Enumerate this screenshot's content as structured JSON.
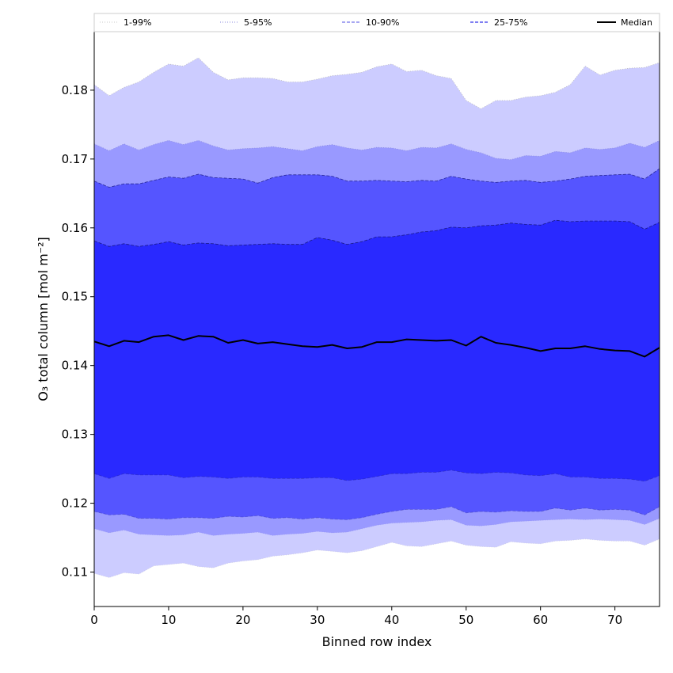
{
  "chart_data": {
    "type": "area",
    "title": "",
    "xlabel": "Binned row index",
    "ylabel": "O₃ total column [mol m⁻²]",
    "xlim": [
      0,
      76
    ],
    "ylim": [
      0.105,
      0.1885
    ],
    "xticks": [
      0,
      10,
      20,
      30,
      40,
      50,
      60,
      70
    ],
    "yticks": [
      0.11,
      0.12,
      0.13,
      0.14,
      0.15,
      0.16,
      0.17,
      0.18
    ],
    "x": [
      0,
      2,
      4,
      6,
      8,
      10,
      12,
      14,
      16,
      18,
      20,
      22,
      24,
      26,
      28,
      30,
      32,
      34,
      36,
      38,
      40,
      42,
      44,
      46,
      48,
      50,
      52,
      54,
      56,
      58,
      60,
      62,
      64,
      66,
      68,
      70,
      72,
      74,
      76
    ],
    "bands": [
      {
        "name": "1-99%",
        "color": "#ccccff",
        "line": "#bbbbbb",
        "upper": [
          0.1808,
          0.1792,
          0.1804,
          0.1812,
          0.1826,
          0.1838,
          0.1835,
          0.1847,
          0.1826,
          0.1815,
          0.1818,
          0.1818,
          0.1817,
          0.1812,
          0.1812,
          0.1816,
          0.1821,
          0.1823,
          0.1826,
          0.1834,
          0.1838,
          0.1827,
          0.1829,
          0.1821,
          0.1817,
          0.1785,
          0.1773,
          0.1785,
          0.1785,
          0.179,
          0.1792,
          0.1797,
          0.1808,
          0.1835,
          0.1822,
          0.1829,
          0.1832,
          0.1833,
          0.184
        ],
        "lower": [
          0.1098,
          0.1092,
          0.1099,
          0.1097,
          0.1109,
          0.1111,
          0.1113,
          0.1108,
          0.1106,
          0.1113,
          0.1116,
          0.1118,
          0.1123,
          0.1125,
          0.1128,
          0.1132,
          0.113,
          0.1128,
          0.1131,
          0.1137,
          0.1143,
          0.1138,
          0.1137,
          0.1141,
          0.1145,
          0.1139,
          0.1137,
          0.1136,
          0.1144,
          0.1142,
          0.1141,
          0.1145,
          0.1146,
          0.1148,
          0.1146,
          0.1145,
          0.1145,
          0.1139,
          0.1148
        ]
      },
      {
        "name": "5-95%",
        "color": "#9999ff",
        "line": "#8a8add",
        "upper": [
          0.1722,
          0.1712,
          0.1722,
          0.1713,
          0.1721,
          0.1727,
          0.1721,
          0.1727,
          0.1719,
          0.1713,
          0.1715,
          0.1716,
          0.1718,
          0.1715,
          0.1712,
          0.1718,
          0.1721,
          0.1716,
          0.1713,
          0.1717,
          0.1716,
          0.1712,
          0.1717,
          0.1716,
          0.1722,
          0.1714,
          0.1709,
          0.1701,
          0.1699,
          0.1705,
          0.1704,
          0.1711,
          0.1709,
          0.1716,
          0.1714,
          0.1716,
          0.1723,
          0.1717,
          0.1727
        ],
        "lower": [
          0.1163,
          0.1157,
          0.1161,
          0.1155,
          0.1154,
          0.1153,
          0.1154,
          0.1158,
          0.1153,
          0.1155,
          0.1156,
          0.1158,
          0.1153,
          0.1155,
          0.1156,
          0.1159,
          0.1157,
          0.1158,
          0.1163,
          0.1168,
          0.1171,
          0.1172,
          0.1173,
          0.1175,
          0.1176,
          0.1168,
          0.1167,
          0.1169,
          0.1173,
          0.1174,
          0.1175,
          0.1176,
          0.1177,
          0.1176,
          0.1177,
          0.1176,
          0.1175,
          0.1169,
          0.1178
        ]
      },
      {
        "name": "10-90%",
        "color": "#5555ff",
        "line": "#2a2a99",
        "upper": [
          0.1668,
          0.1659,
          0.1664,
          0.1664,
          0.1669,
          0.1674,
          0.1672,
          0.1678,
          0.1673,
          0.1672,
          0.1671,
          0.1665,
          0.1673,
          0.1677,
          0.1677,
          0.1677,
          0.1675,
          0.1668,
          0.1668,
          0.1669,
          0.1668,
          0.1667,
          0.1669,
          0.1668,
          0.1675,
          0.1671,
          0.1668,
          0.1666,
          0.1668,
          0.1669,
          0.1666,
          0.1668,
          0.1671,
          0.1675,
          0.1676,
          0.1677,
          0.1678,
          0.1671,
          0.1686
        ],
        "lower": [
          0.1188,
          0.1183,
          0.1184,
          0.1178,
          0.1178,
          0.1177,
          0.1179,
          0.1179,
          0.1178,
          0.1181,
          0.118,
          0.1182,
          0.1178,
          0.1179,
          0.1177,
          0.1179,
          0.1177,
          0.1176,
          0.1179,
          0.1184,
          0.1188,
          0.1191,
          0.1191,
          0.1191,
          0.1195,
          0.1186,
          0.1188,
          0.1187,
          0.1189,
          0.1188,
          0.1188,
          0.1193,
          0.119,
          0.1193,
          0.119,
          0.1191,
          0.119,
          0.1183,
          0.1195
        ]
      },
      {
        "name": "25-75%",
        "color": "#2929ff",
        "line": "#1a1a8a",
        "upper": [
          0.1581,
          0.1573,
          0.1577,
          0.1573,
          0.1576,
          0.158,
          0.1575,
          0.1578,
          0.1577,
          0.1574,
          0.1575,
          0.1576,
          0.1577,
          0.1576,
          0.1576,
          0.1586,
          0.1582,
          0.1576,
          0.158,
          0.1587,
          0.1587,
          0.159,
          0.1594,
          0.1596,
          0.1601,
          0.16,
          0.1603,
          0.1604,
          0.1607,
          0.1605,
          0.1604,
          0.1611,
          0.1609,
          0.161,
          0.161,
          0.161,
          0.1609,
          0.1598,
          0.1608
        ],
        "lower": [
          0.1243,
          0.1236,
          0.1243,
          0.1241,
          0.1241,
          0.1241,
          0.1237,
          0.1239,
          0.1238,
          0.1236,
          0.1238,
          0.1238,
          0.1236,
          0.1236,
          0.1236,
          0.1237,
          0.1237,
          0.1233,
          0.1235,
          0.1239,
          0.1243,
          0.1243,
          0.1245,
          0.1245,
          0.1248,
          0.1244,
          0.1243,
          0.1245,
          0.1244,
          0.1241,
          0.124,
          0.1243,
          0.1238,
          0.1238,
          0.1236,
          0.1236,
          0.1235,
          0.1232,
          0.124
        ]
      }
    ],
    "series": [
      {
        "name": "Median",
        "color": "#000000",
        "values": [
          0.1435,
          0.1428,
          0.1436,
          0.1434,
          0.1442,
          0.1444,
          0.1437,
          0.1443,
          0.1442,
          0.1433,
          0.1437,
          0.1432,
          0.1434,
          0.1431,
          0.1428,
          0.1427,
          0.143,
          0.1425,
          0.1427,
          0.1434,
          0.1434,
          0.1438,
          0.1437,
          0.1436,
          0.1437,
          0.1429,
          0.1442,
          0.1433,
          0.143,
          0.1426,
          0.1421,
          0.1425,
          0.1425,
          0.1428,
          0.1424,
          0.1422,
          0.1421,
          0.1413,
          0.1426
        ]
      }
    ],
    "legend": {
      "position": "top",
      "entries": [
        {
          "label": "1-99%",
          "style": "thin-dotted",
          "color": "#c8c8c8"
        },
        {
          "label": "5-95%",
          "style": "thin-dotted",
          "color": "#8a8add"
        },
        {
          "label": "10-90%",
          "style": "dashed",
          "color": "#8a8aee"
        },
        {
          "label": "25-75%",
          "style": "dashed",
          "color": "#5555ee"
        },
        {
          "label": "Median",
          "style": "solid",
          "color": "#000000"
        }
      ]
    }
  }
}
